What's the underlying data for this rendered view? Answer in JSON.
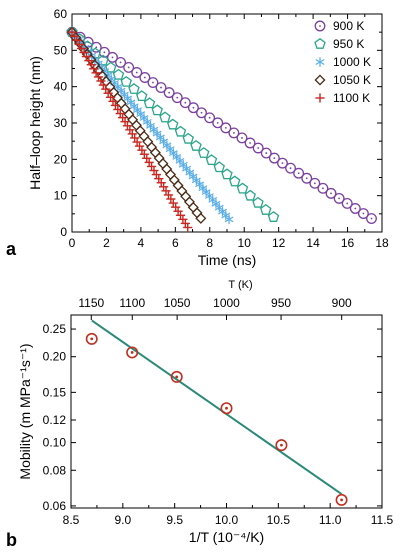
{
  "chart_data": [
    {
      "panel": "a",
      "type": "scatter",
      "xlabel": "Time (ns)",
      "ylabel": "Half–loop height (nm)",
      "xlim": [
        0,
        18
      ],
      "ylim": [
        0,
        60
      ],
      "xticks": [
        "0",
        "2",
        "4",
        "6",
        "8",
        "10",
        "12",
        "14",
        "16",
        "18"
      ],
      "yticks": [
        "0",
        "10",
        "20",
        "30",
        "40",
        "50",
        "60"
      ],
      "legend": "top-right",
      "series": [
        {
          "name": "900 K",
          "marker": "circle",
          "color": "#7b3fa0",
          "x0": 0,
          "y0": 55,
          "slope": -2.95,
          "dx": 0.47,
          "xend": 17.5
        },
        {
          "name": "950 K",
          "marker": "pentagon",
          "color": "#2aa58a",
          "x0": 0,
          "y0": 55,
          "slope": -4.35,
          "dx": 0.45,
          "xend": 12.0
        },
        {
          "name": "1000 K",
          "marker": "asterisk",
          "color": "#5aaee8",
          "x0": 0,
          "y0": 55,
          "slope": -5.65,
          "dx": 0.19,
          "xend": 9.2
        },
        {
          "name": "1050 K",
          "marker": "diamond",
          "color": "#4a2a14",
          "x0": 0,
          "y0": 55,
          "slope": -6.85,
          "dx": 0.22,
          "xend": 7.6
        },
        {
          "name": "1100 K",
          "marker": "plus",
          "color": "#c82820",
          "x0": 0,
          "y0": 55,
          "slope": -8.0,
          "dx": 0.14,
          "xend": 6.8
        }
      ]
    },
    {
      "panel": "b",
      "type": "scatter",
      "xlabel": "1/T (10⁻⁴/K)",
      "ylabel": "Mobility (m MPa⁻¹s⁻¹)",
      "top_axis_label": "T (K)",
      "log_y": true,
      "xlim": [
        8.5,
        11.5
      ],
      "ylim": [
        0.059,
        0.28
      ],
      "xticks": [
        "8.5",
        "9.0",
        "9.5",
        "10.0",
        "10.5",
        "11.0",
        "11.5"
      ],
      "yticks": [
        "0.06",
        "0.08",
        "0.10",
        "0.12",
        "0.15",
        "0.20",
        "0.25"
      ],
      "top_ticks": [
        "1150",
        "1100",
        "1050",
        "1000",
        "950",
        "900"
      ],
      "points": {
        "name": "",
        "color": "#c03020",
        "x": [
          8.7,
          9.09,
          9.52,
          10.0,
          10.53,
          11.11
        ],
        "y": [
          0.231,
          0.207,
          0.17,
          0.132,
          0.098,
          0.063
        ]
      },
      "fit": {
        "color": "#2a8a78",
        "x": [
          8.7,
          11.11
        ],
        "y": [
          0.268,
          0.066
        ]
      }
    }
  ]
}
